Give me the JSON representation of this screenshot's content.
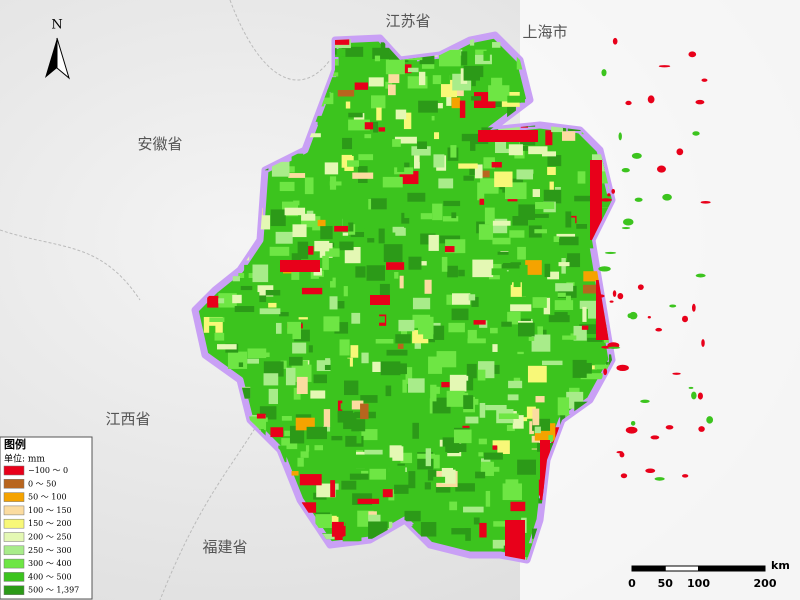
{
  "north_arrow": "N",
  "place_labels": [
    "江苏省",
    "上海市",
    "安徽省",
    "江西省",
    "福建省"
  ],
  "legend": {
    "title": "图例",
    "unit": "单位: mm",
    "classes": [
      {
        "label": "−100 ～ 0",
        "color": "#e8001a"
      },
      {
        "label": "0 ～ 50",
        "color": "#b8651e"
      },
      {
        "label": "50 ～ 100",
        "color": "#f5a300"
      },
      {
        "label": "100 ～ 150",
        "color": "#fbdca0"
      },
      {
        "label": "150 ～ 200",
        "color": "#f8f878"
      },
      {
        "label": "200 ～ 250",
        "color": "#e4f8b4"
      },
      {
        "label": "250 ～ 300",
        "color": "#a8ec8a"
      },
      {
        "label": "300 ～ 400",
        "color": "#6ee644"
      },
      {
        "label": "400 ～ 500",
        "color": "#3cc41e"
      },
      {
        "label": "500 ～ 1,397",
        "color": "#2c9a18"
      }
    ]
  },
  "scale_bar": {
    "unit": "km",
    "ticks": [
      0,
      50,
      100,
      200
    ]
  }
}
